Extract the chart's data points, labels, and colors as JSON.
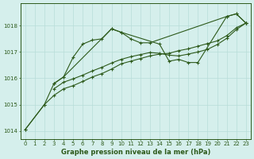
{
  "xlabel": "Graphe pression niveau de la mer (hPa)",
  "bg_color": "#d5efec",
  "line_color": "#2d5a1b",
  "grid_color": "#b8ddd9",
  "ylim": [
    1013.7,
    1018.85
  ],
  "yticks": [
    1014,
    1015,
    1016,
    1017,
    1018
  ],
  "xlim": [
    -0.5,
    23.5
  ],
  "xticks": [
    0,
    1,
    2,
    3,
    4,
    5,
    6,
    7,
    8,
    9,
    10,
    11,
    12,
    13,
    14,
    15,
    16,
    17,
    18,
    19,
    20,
    21,
    22,
    23
  ],
  "s1_x": [
    0,
    2,
    3,
    4,
    5,
    6,
    7,
    8,
    9,
    10,
    11,
    12,
    13,
    21,
    22,
    23
  ],
  "s1_y": [
    1014.05,
    1015.0,
    1015.8,
    1016.05,
    1016.8,
    1017.3,
    1017.45,
    1017.5,
    1017.88,
    1017.75,
    1017.5,
    1017.35,
    1017.35,
    1018.35,
    1018.45,
    1018.1
  ],
  "s2_x": [
    3,
    4,
    9,
    10,
    14,
    15,
    16,
    17,
    18,
    21,
    22,
    23
  ],
  "s2_y": [
    1015.8,
    1016.05,
    1017.88,
    1017.75,
    1017.3,
    1016.65,
    1016.72,
    1016.6,
    1016.6,
    1018.35,
    1018.45,
    1018.1
  ],
  "s3_x": [
    0,
    2,
    3,
    4,
    5,
    6,
    7,
    8,
    9,
    10,
    11,
    12,
    13,
    14,
    15,
    16,
    17,
    18,
    19,
    20,
    21,
    22,
    23
  ],
  "s3_y": [
    1014.05,
    1015.0,
    1015.35,
    1015.6,
    1015.72,
    1015.88,
    1016.05,
    1016.18,
    1016.35,
    1016.55,
    1016.65,
    1016.75,
    1016.85,
    1016.92,
    1016.95,
    1017.05,
    1017.12,
    1017.22,
    1017.32,
    1017.42,
    1017.62,
    1017.92,
    1018.1
  ],
  "s4_x": [
    3,
    4,
    5,
    6,
    7,
    8,
    9,
    10,
    11,
    12,
    13,
    14,
    15,
    16,
    17,
    18,
    19,
    20,
    21,
    22,
    23
  ],
  "s4_y": [
    1015.6,
    1015.85,
    1015.98,
    1016.12,
    1016.28,
    1016.42,
    1016.58,
    1016.72,
    1016.82,
    1016.9,
    1016.98,
    1016.95,
    1016.88,
    1016.85,
    1016.92,
    1017.0,
    1017.1,
    1017.28,
    1017.52,
    1017.85,
    1018.1
  ],
  "xlabel_fontsize": 6.0,
  "tick_fontsize": 5.0,
  "lw": 0.8,
  "ms": 2.5
}
